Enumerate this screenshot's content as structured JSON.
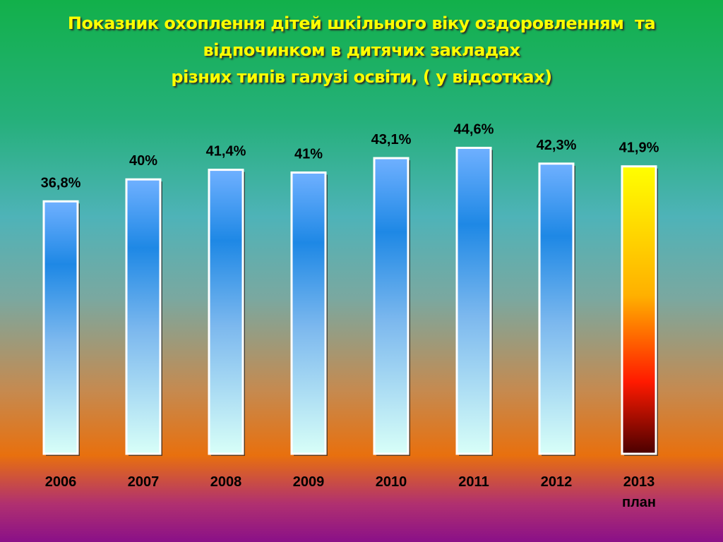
{
  "chart_data": {
    "type": "bar",
    "title": [
      "Показник охоплення дітей шкільного віку оздоровленням  та",
      "відпочинком в дитячих закладах",
      "різних типів галузі освіти, ( у відсотках)"
    ],
    "categories": [
      "2006",
      "2007",
      "2008",
      "2009",
      "2010",
      "2011",
      "2012",
      "2013\nплан"
    ],
    "values": [
      36.8,
      40,
      41.4,
      41,
      43.1,
      44.6,
      42.3,
      41.9
    ],
    "value_labels": [
      "36,8%",
      "40%",
      "41,4%",
      "41%",
      "43,1%",
      "44,6%",
      "42,3%",
      "41,9%"
    ],
    "colors": [
      "#1e88e5",
      "#1e88e5",
      "#1e88e5",
      "#1e88e5",
      "#1e88e5",
      "#1e88e5",
      "#1e88e5",
      "#ff1a00"
    ]
  }
}
